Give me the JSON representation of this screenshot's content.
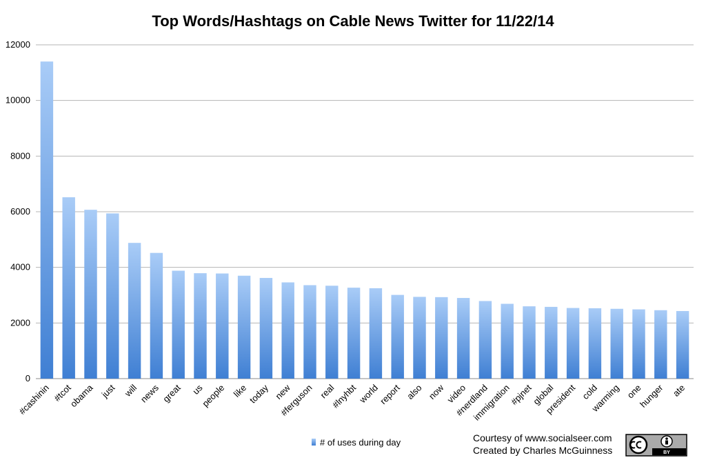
{
  "chart_data": {
    "type": "bar",
    "title": "Top Words/Hashtags on Cable News Twitter for 11/22/14",
    "xlabel": "",
    "ylabel": "",
    "ylim": [
      0,
      12000
    ],
    "yticks": [
      0,
      2000,
      4000,
      6000,
      8000,
      10000,
      12000
    ],
    "grid": true,
    "legend_position": "bottom-center",
    "categories": [
      "#cashinin",
      "#tcot",
      "obama",
      "just",
      "will",
      "news",
      "great",
      "us",
      "people",
      "like",
      "today",
      "new",
      "#ferguson",
      "real",
      "#lnyhbt",
      "world",
      "report",
      "also",
      "now",
      "video",
      "#nerdland",
      "immigration",
      "#pjnet",
      "global",
      "president",
      "cold",
      "warming",
      "one",
      "hunger",
      "ate"
    ],
    "series": [
      {
        "name": "# of uses during day",
        "color": "#5b8fd6",
        "values": [
          11400,
          6520,
          6070,
          5940,
          4880,
          4520,
          3880,
          3790,
          3780,
          3700,
          3620,
          3460,
          3360,
          3340,
          3270,
          3250,
          3010,
          2940,
          2930,
          2900,
          2790,
          2690,
          2600,
          2580,
          2540,
          2530,
          2510,
          2490,
          2460,
          2430
        ]
      }
    ]
  },
  "credits": {
    "line1": "Courtesy of www.socialseer.com",
    "line2": "Created by Charles McGuinness"
  },
  "license_badge": {
    "icon": "cc-by-icon",
    "text": "BY"
  }
}
